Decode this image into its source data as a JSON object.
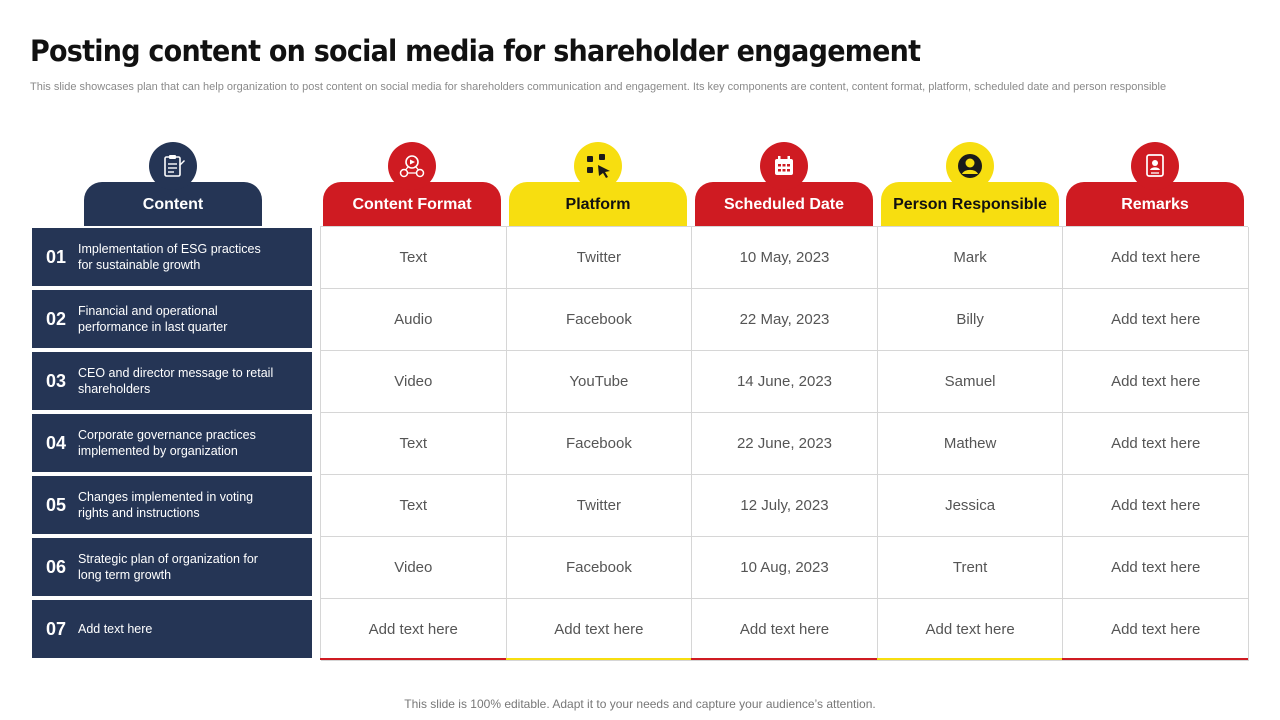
{
  "slide": {
    "title": "Posting content on social media for shareholder engagement",
    "subtitle": "This slide showcases plan that can help organization to post content on social media for shareholders communication and engagement. Its key components are content, content format, platform, scheduled date and person responsible",
    "footer": "This slide is 100% editable. Adapt it to your needs and capture your audience’s attention."
  },
  "colors": {
    "navy": "#253555",
    "red": "#cf1b22",
    "yellow": "#f7de10"
  },
  "headers": {
    "content": {
      "label": "Content",
      "icon": "clipboard-icon"
    },
    "format": {
      "label": "Content Format",
      "icon": "media-format-icon"
    },
    "platform": {
      "label": "Platform",
      "icon": "social-platform-icon"
    },
    "date": {
      "label": "Scheduled Date",
      "icon": "calendar-icon"
    },
    "person": {
      "label": "Person Responsible",
      "icon": "user-icon"
    },
    "remarks": {
      "label": "Remarks",
      "icon": "document-icon"
    }
  },
  "rows": [
    {
      "num": "01",
      "content": "Implementation of ESG practices for sustainable growth",
      "format": "Text",
      "platform": "Twitter",
      "date": "10 May, 2023",
      "person": "Mark",
      "remarks": "Add text here"
    },
    {
      "num": "02",
      "content": "Financial and operational performance  in last quarter",
      "format": "Audio",
      "platform": "Facebook",
      "date": "22 May, 2023",
      "person": "Billy",
      "remarks": "Add text here"
    },
    {
      "num": "03",
      "content": "CEO and director message to retail shareholders",
      "format": "Video",
      "platform": "YouTube",
      "date": "14 June, 2023",
      "person": "Samuel",
      "remarks": "Add text here"
    },
    {
      "num": "04",
      "content": "Corporate governance  practices implemented  by organization",
      "format": "Text",
      "platform": "Facebook",
      "date": "22 June, 2023",
      "person": "Mathew",
      "remarks": "Add text here"
    },
    {
      "num": "05",
      "content": "Changes  implemented in voting rights and instructions",
      "format": "Text",
      "platform": "Twitter",
      "date": "12 July, 2023",
      "person": "Jessica",
      "remarks": "Add text here"
    },
    {
      "num": "06",
      "content": "Strategic plan of organization  for long term growth",
      "format": "Video",
      "platform": "Facebook",
      "date": "10 Aug, 2023",
      "person": "Trent",
      "remarks": "Add text here"
    },
    {
      "num": "07",
      "content": "Add text here",
      "format": "Add text here",
      "platform": "Add text here",
      "date": "Add text here",
      "person": "Add text here",
      "remarks": "Add text here"
    }
  ]
}
